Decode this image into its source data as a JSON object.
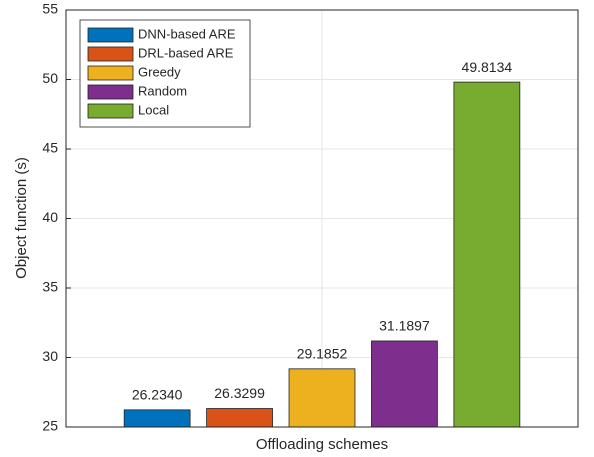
{
  "chart_data": {
    "type": "bar",
    "xlabel": "Offloading schemes",
    "ylabel": "Object function (s)",
    "categories": [
      null
    ],
    "series": [
      {
        "name": "DNN-based ARE",
        "color": "#0072bd",
        "values": [
          26.234
        ],
        "value_labels": [
          "26.2340"
        ]
      },
      {
        "name": "DRL-based ARE",
        "color": "#d95319",
        "values": [
          26.3299
        ],
        "value_labels": [
          "26.3299"
        ]
      },
      {
        "name": "Greedy",
        "color": "#edb120",
        "values": [
          29.1852
        ],
        "value_labels": [
          "29.1852"
        ]
      },
      {
        "name": "Random",
        "color": "#7e2f8e",
        "values": [
          31.1897
        ],
        "value_labels": [
          "31.1897"
        ]
      },
      {
        "name": "Local",
        "color": "#77ac30",
        "values": [
          49.8134
        ],
        "value_labels": [
          "49.8134"
        ]
      }
    ],
    "ylim": [
      25,
      55
    ],
    "yticks": [
      25,
      30,
      35,
      40,
      45,
      50,
      55
    ],
    "grid": true,
    "legend": "upper left"
  }
}
